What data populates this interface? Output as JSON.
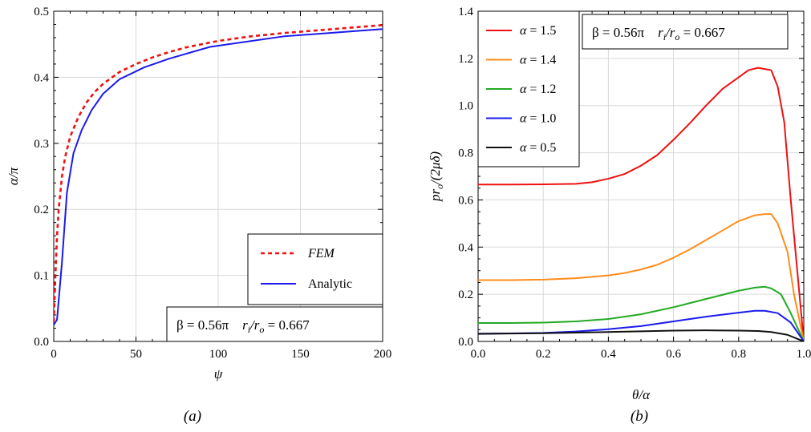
{
  "chart_data": [
    {
      "type": "line",
      "panel": "(a)",
      "caption": "(a)",
      "xlabel": "ψ",
      "ylabel": "α/π",
      "xlim": [
        0,
        200
      ],
      "ylim": [
        0,
        0.5
      ],
      "xticks": [
        "0",
        "50",
        "100",
        "150",
        "200"
      ],
      "yticks": [
        "0.0",
        "0.1",
        "0.2",
        "0.3",
        "0.4",
        "0.5"
      ],
      "grid": true,
      "legend_position": "bottom-right",
      "annotation": [
        "β = 0.56π",
        "r",
        "i",
        "/r",
        "o",
        " = 0.667"
      ],
      "series": [
        {
          "name": "FEM",
          "color": "#ee1111",
          "dash": true,
          "x": [
            0,
            1,
            2,
            3,
            5,
            7,
            10,
            15,
            20,
            25,
            30,
            40,
            50,
            60,
            70,
            80,
            100,
            120,
            140,
            160,
            180,
            200
          ],
          "y": [
            0.03,
            0.1,
            0.16,
            0.2,
            0.25,
            0.28,
            0.31,
            0.34,
            0.362,
            0.378,
            0.39,
            0.408,
            0.42,
            0.43,
            0.438,
            0.445,
            0.455,
            0.462,
            0.467,
            0.471,
            0.475,
            0.479
          ]
        },
        {
          "name": "Analytic",
          "color": "#1a1aee",
          "dash": false,
          "x": [
            0,
            2,
            5,
            8,
            12,
            17,
            23,
            30,
            40,
            55,
            70,
            95,
            140,
            200
          ],
          "y": [
            0.025,
            0.033,
            0.12,
            0.225,
            0.285,
            0.32,
            0.35,
            0.375,
            0.397,
            0.415,
            0.428,
            0.446,
            0.462,
            0.473
          ]
        }
      ]
    },
    {
      "type": "line",
      "panel": "(b)",
      "caption": "(b)",
      "xlabel": "θ/α",
      "ylabel": "pr",
      "ylabel_sub": "o",
      "ylabel_tail": "/(2μδ)",
      "xlim": [
        0,
        1
      ],
      "ylim": [
        0,
        1.4
      ],
      "xticks": [
        "0.0",
        "0.2",
        "0.4",
        "0.6",
        "0.8",
        "1.0"
      ],
      "yticks": [
        "0.0",
        "0.2",
        "0.4",
        "0.6",
        "0.8",
        "1.0",
        "1.2",
        "1.4"
      ],
      "grid": true,
      "legend_position": "top-left",
      "annotation": [
        "β = 0.56π",
        "r",
        "i",
        "/r",
        "o",
        " = 0.667"
      ],
      "series": [
        {
          "name": "α = 1.5",
          "color": "#ee1111",
          "x": [
            0,
            0.1,
            0.2,
            0.3,
            0.35,
            0.4,
            0.45,
            0.5,
            0.55,
            0.6,
            0.65,
            0.7,
            0.75,
            0.8,
            0.83,
            0.86,
            0.88,
            0.9,
            0.92,
            0.94,
            0.96,
            0.98,
            1.0
          ],
          "y": [
            0.665,
            0.665,
            0.666,
            0.668,
            0.675,
            0.69,
            0.71,
            0.745,
            0.79,
            0.855,
            0.925,
            1.0,
            1.07,
            1.12,
            1.15,
            1.16,
            1.155,
            1.15,
            1.08,
            0.93,
            0.6,
            0.3,
            0.0
          ]
        },
        {
          "name": "α = 1.4",
          "color": "#ff8c1a",
          "x": [
            0,
            0.1,
            0.2,
            0.3,
            0.4,
            0.45,
            0.5,
            0.55,
            0.6,
            0.65,
            0.7,
            0.75,
            0.8,
            0.85,
            0.88,
            0.9,
            0.92,
            0.95,
            0.97,
            1.0
          ],
          "y": [
            0.26,
            0.26,
            0.262,
            0.268,
            0.28,
            0.29,
            0.305,
            0.325,
            0.355,
            0.39,
            0.43,
            0.47,
            0.51,
            0.535,
            0.54,
            0.54,
            0.5,
            0.38,
            0.2,
            0.0
          ]
        },
        {
          "name": "α = 1.2",
          "color": "#22aa22",
          "x": [
            0,
            0.1,
            0.2,
            0.3,
            0.4,
            0.5,
            0.6,
            0.7,
            0.8,
            0.85,
            0.88,
            0.9,
            0.93,
            0.96,
            1.0
          ],
          "y": [
            0.078,
            0.078,
            0.08,
            0.085,
            0.095,
            0.115,
            0.145,
            0.18,
            0.215,
            0.228,
            0.232,
            0.225,
            0.2,
            0.12,
            0.0
          ]
        },
        {
          "name": "α = 1.0",
          "color": "#1a1aee",
          "x": [
            0,
            0.1,
            0.2,
            0.3,
            0.4,
            0.5,
            0.6,
            0.7,
            0.8,
            0.85,
            0.88,
            0.92,
            0.96,
            1.0
          ],
          "y": [
            0.033,
            0.034,
            0.036,
            0.042,
            0.052,
            0.065,
            0.085,
            0.105,
            0.122,
            0.13,
            0.13,
            0.12,
            0.08,
            0.0
          ]
        },
        {
          "name": "α = 0.5",
          "color": "#111111",
          "x": [
            0,
            0.2,
            0.4,
            0.5,
            0.6,
            0.7,
            0.8,
            0.86,
            0.9,
            0.95,
            1.0
          ],
          "y": [
            0.032,
            0.035,
            0.04,
            0.043,
            0.046,
            0.047,
            0.046,
            0.044,
            0.04,
            0.028,
            0.0
          ]
        }
      ]
    }
  ]
}
